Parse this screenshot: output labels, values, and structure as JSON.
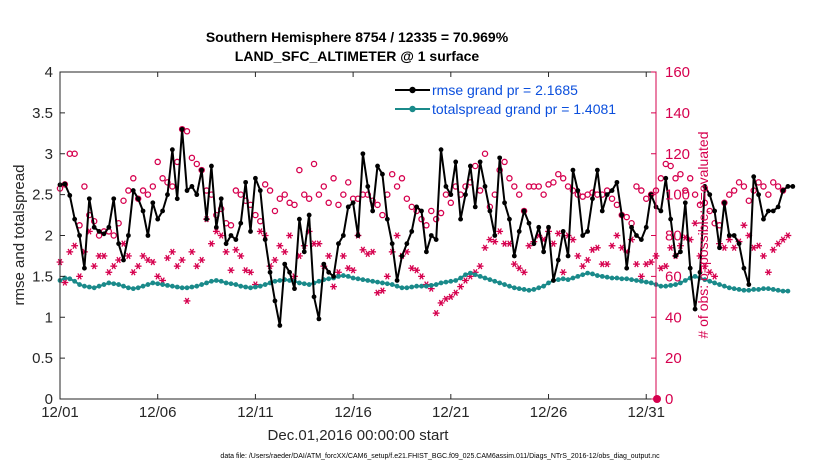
{
  "chart_data": {
    "type": "line",
    "title_line1": "Southern Hemisphere 8754 / 12335 = 70.969%",
    "title_line2": "LAND_SFC_ALTIMETER @ 1 surface",
    "xlabel": "Dec.01,2016 00:00:00 start",
    "ylabel_left": "rmse and totalspread",
    "ylabel_right": "# of obs: o=possible; *=evaluated",
    "footnote": "data file: /Users/raeder/DAI/ATM_forcXX/CAM6_setup/f.e21.FHIST_BGC.f09_025.CAM6assim.011/Diags_NTrS_2016-12/obs_diag_output.nc",
    "xlim": [
      1,
      31.5
    ],
    "ylim_left": [
      0,
      4
    ],
    "ylim_right": [
      0,
      160
    ],
    "x_ticks": [
      1,
      6,
      11,
      16,
      21,
      26,
      31
    ],
    "x_tick_labels": [
      "12/01",
      "12/06",
      "12/11",
      "12/16",
      "12/21",
      "12/26",
      "12/31"
    ],
    "y_ticks_left": [
      0,
      0.5,
      1,
      1.5,
      2,
      2.5,
      3,
      3.5,
      4
    ],
    "y_tick_labels_left": [
      "0",
      "0.5",
      "1",
      "1.5",
      "2",
      "2.5",
      "3",
      "3.5",
      "4"
    ],
    "y_ticks_right": [
      0,
      20,
      40,
      60,
      80,
      100,
      120,
      140,
      160
    ],
    "y_tick_labels_right": [
      "0",
      "20",
      "40",
      "60",
      "80",
      "100",
      "120",
      "140",
      "160"
    ],
    "x_start": 1.0,
    "x_step": 0.25,
    "series": [
      {
        "name": "rmse",
        "legend_label": "rmse grand pr = 2.1685",
        "color": "#000000",
        "axis": "left",
        "values": [
          2.62,
          2.63,
          2.49,
          2.2,
          2.0,
          1.6,
          2.45,
          2.1,
          2.05,
          2.02,
          2.1,
          2.45,
          1.9,
          1.7,
          2.0,
          2.55,
          2.45,
          2.3,
          2.0,
          2.4,
          2.2,
          2.3,
          2.5,
          3.05,
          2.45,
          3.3,
          2.55,
          2.6,
          2.5,
          2.8,
          2.2,
          2.85,
          2.1,
          2.45,
          1.9,
          2.0,
          1.95,
          2.15,
          2.65,
          2.05,
          2.7,
          2.55,
          1.95,
          1.55,
          1.2,
          0.9,
          1.65,
          1.55,
          1.35,
          2.2,
          1.8,
          2.25,
          1.25,
          0.98,
          1.65,
          1.55,
          1.5,
          1.9,
          2.0,
          2.35,
          2.4,
          2.0,
          3.0,
          2.6,
          2.3,
          2.85,
          2.75,
          2.2,
          1.9,
          1.45,
          1.75,
          1.9,
          2.05,
          2.35,
          2.3,
          1.8,
          2.0,
          1.95,
          3.05,
          2.6,
          2.5,
          2.9,
          2.2,
          2.5,
          2.85,
          2.35,
          2.9,
          2.6,
          2.3,
          2.0,
          2.95,
          2.4,
          2.2,
          1.75,
          2.05,
          2.3,
          2.15,
          1.9,
          2.1,
          1.8,
          2.1,
          1.45,
          1.7,
          2.05,
          1.75,
          2.8,
          2.55,
          2.0,
          2.05,
          2.45,
          2.8,
          2.3,
          2.5,
          2.55,
          2.65,
          2.25,
          1.6,
          2.1,
          2.0,
          1.95,
          2.1,
          2.5,
          2.35,
          2.3,
          2.7,
          2.2,
          1.75,
          1.8,
          2.4,
          1.6,
          1.1,
          1.55,
          2.6,
          2.5,
          2.3,
          1.85,
          2.4,
          2.0,
          2.0,
          1.9,
          1.6,
          1.4,
          2.72,
          2.5,
          2.2,
          2.3,
          2.3,
          2.35,
          2.55,
          2.6,
          2.6
        ]
      },
      {
        "name": "totalspread",
        "legend_label": "totalspread grand pr = 1.4081",
        "color": "#1a8a8a",
        "axis": "left",
        "values": [
          1.45,
          1.48,
          1.47,
          1.44,
          1.4,
          1.38,
          1.37,
          1.36,
          1.38,
          1.4,
          1.42,
          1.41,
          1.4,
          1.38,
          1.36,
          1.35,
          1.36,
          1.38,
          1.4,
          1.42,
          1.41,
          1.4,
          1.39,
          1.38,
          1.37,
          1.36,
          1.36,
          1.37,
          1.38,
          1.4,
          1.42,
          1.44,
          1.45,
          1.44,
          1.42,
          1.41,
          1.4,
          1.38,
          1.37,
          1.36,
          1.37,
          1.38,
          1.4,
          1.42,
          1.44,
          1.45,
          1.46,
          1.45,
          1.44,
          1.42,
          1.41,
          1.4,
          1.42,
          1.44,
          1.46,
          1.47,
          1.48,
          1.5,
          1.51,
          1.5,
          1.48,
          1.47,
          1.46,
          1.45,
          1.44,
          1.43,
          1.42,
          1.41,
          1.4,
          1.38,
          1.36,
          1.36,
          1.37,
          1.38,
          1.38,
          1.38,
          1.39,
          1.4,
          1.42,
          1.43,
          1.44,
          1.45,
          1.48,
          1.52,
          1.54,
          1.52,
          1.5,
          1.48,
          1.46,
          1.44,
          1.42,
          1.4,
          1.38,
          1.36,
          1.35,
          1.34,
          1.33,
          1.34,
          1.36,
          1.38,
          1.42,
          1.45,
          1.46,
          1.47,
          1.46,
          1.48,
          1.5,
          1.52,
          1.54,
          1.53,
          1.51,
          1.5,
          1.49,
          1.48,
          1.48,
          1.47,
          1.47,
          1.46,
          1.45,
          1.44,
          1.43,
          1.42,
          1.4,
          1.38,
          1.38,
          1.39,
          1.4,
          1.42,
          1.45,
          1.48,
          1.5,
          1.48,
          1.46,
          1.44,
          1.42,
          1.4,
          1.38,
          1.36,
          1.35,
          1.34,
          1.33,
          1.33,
          1.34,
          1.34,
          1.35,
          1.35,
          1.34,
          1.33,
          1.32,
          1.32
        ]
      },
      {
        "name": "possible",
        "marker": "o",
        "color": "#d6004e",
        "axis": "right",
        "values": [
          103,
          105,
          120,
          120,
          85,
          104,
          90,
          87,
          80,
          82,
          82,
          80,
          86,
          97,
          102,
          108,
          98,
          102,
          100,
          104,
          116,
          108,
          106,
          104,
          116,
          132,
          131,
          118,
          115,
          112,
          102,
          100,
          90,
          93,
          86,
          85,
          102,
          100,
          97,
          95,
          90,
          87,
          105,
          102,
          92,
          98,
          100,
          96,
          95,
          112,
          100,
          98,
          115,
          100,
          104,
          96,
          108,
          95,
          100,
          106,
          98,
          98,
          100,
          100,
          97,
          95,
          90,
          100,
          110,
          104,
          108,
          98,
          94,
          92,
          88,
          85,
          92,
          88,
          91,
          100,
          96,
          104,
          100,
          104,
          106,
          114,
          102,
          120,
          94,
          100,
          112,
          116,
          108,
          104,
          100,
          92,
          104,
          104,
          104,
          100,
          105,
          106,
          110,
          108,
          104,
          102,
          100,
          99,
          100,
          101,
          100,
          100,
          102,
          98,
          95,
          90,
          89,
          86,
          104,
          102,
          98,
          100,
          102,
          108,
          115,
          114,
          108,
          110,
          102,
          108,
          100,
          95,
          96,
          92,
          86,
          85,
          96,
          100,
          102,
          106,
          104,
          97,
          102,
          106,
          104,
          100,
          106,
          104,
          102
        ]
      },
      {
        "name": "evaluated",
        "marker": "*",
        "color": "#d6004e",
        "axis": "right",
        "values": [
          67,
          57,
          72,
          75,
          60,
          72,
          82,
          65,
          70,
          70,
          62,
          65,
          68,
          76,
          70,
          62,
          65,
          70,
          68,
          67,
          60,
          58,
          69,
          72,
          65,
          68,
          48,
          72,
          65,
          68,
          88,
          76,
          82,
          80,
          72,
          63,
          73,
          70,
          63,
          62,
          56,
          82,
          80,
          65,
          68,
          75,
          72,
          80,
          60,
          70,
          75,
          82,
          76,
          76,
          65,
          70,
          55,
          62,
          70,
          64,
          63,
          80,
          73,
          71,
          72,
          52,
          53,
          60,
          72,
          80,
          70,
          72,
          64,
          63,
          60,
          56,
          54,
          42,
          47,
          49,
          50,
          52,
          55,
          58,
          60,
          62,
          65,
          74,
          78,
          77,
          82,
          76,
          76,
          66,
          64,
          62,
          75,
          77,
          80,
          78,
          82,
          76,
          81,
          62,
          80,
          78,
          70,
          65,
          68,
          73,
          74,
          66,
          66,
          75,
          80,
          74,
          72,
          78,
          66,
          60,
          66,
          67,
          70,
          64,
          65,
          74,
          70,
          75,
          79,
          78,
          86,
          70,
          65,
          62,
          60,
          76,
          74,
          78,
          74,
          77,
          85,
          80,
          74,
          75,
          70,
          62,
          73,
          76,
          78,
          80
        ]
      }
    ]
  }
}
